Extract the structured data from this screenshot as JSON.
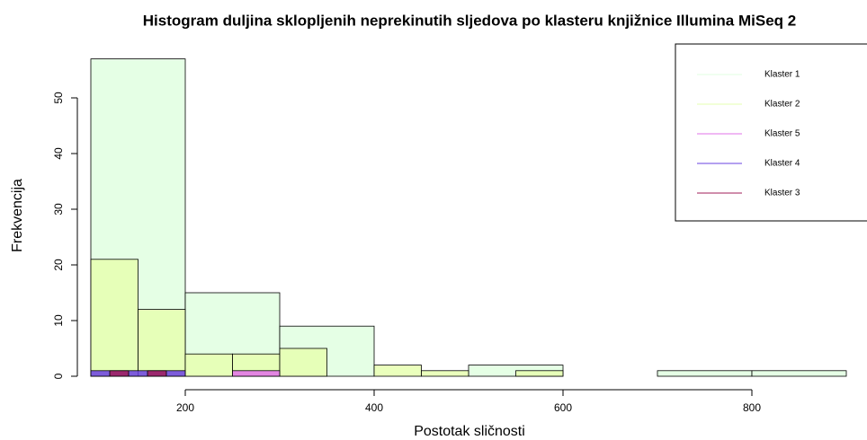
{
  "chart_data": {
    "type": "histogram",
    "title": "Histogram duljina sklopljenih neprekinutih sljedova po klasteru knjižnice Illumina MiSeq 2",
    "xlabel": "Postotak sličnosti",
    "ylabel": "Frekvencija",
    "series": [
      {
        "name": "Klaster 1",
        "color": "#e0ffe0",
        "bins": [
          100,
          200,
          300,
          400,
          500,
          600,
          700,
          800,
          900
        ],
        "values": [
          57,
          15,
          9,
          0,
          2,
          0,
          1,
          1
        ]
      },
      {
        "name": "Klaster 2",
        "color": "#e6ffb0",
        "bins": [
          100,
          150,
          200,
          250,
          300,
          350,
          400,
          450,
          500,
          550,
          600
        ],
        "values": [
          21,
          12,
          4,
          4,
          5,
          0,
          2,
          1,
          0,
          1
        ]
      },
      {
        "name": "Klaster 5",
        "color": "#e070e8",
        "bins": [
          250,
          300
        ],
        "values": [
          1
        ]
      },
      {
        "name": "Klaster 4",
        "color": "#6a40e0",
        "bins": [
          100,
          200
        ],
        "values": [
          1
        ]
      },
      {
        "name": "Klaster 3",
        "color": "#a01e5a",
        "bins": [
          120,
          140,
          160,
          180
        ],
        "values": [
          1,
          0,
          1
        ]
      }
    ],
    "xlim": [
      100,
      900
    ],
    "xticks": [
      200,
      400,
      600,
      800
    ],
    "ylim": [
      0,
      57
    ],
    "yticks": [
      0,
      10,
      20,
      30,
      40,
      50
    ],
    "legend": "top-right"
  }
}
